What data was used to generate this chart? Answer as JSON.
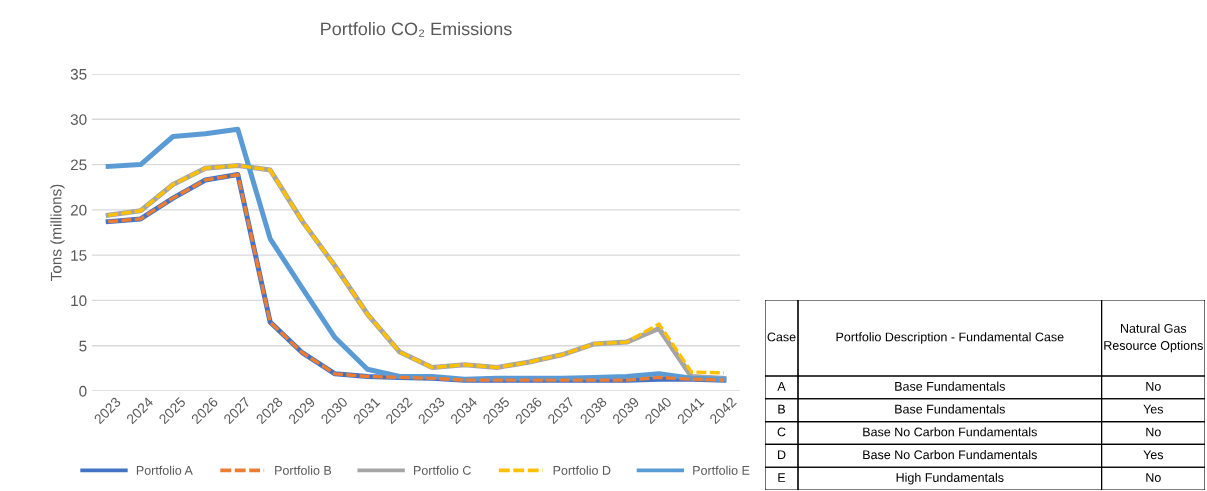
{
  "chart_data": [
    {
      "type": "line",
      "title": "Portfolio CO₂ Emissions",
      "ylabel": "Tons (millions)",
      "categories": [
        "2023",
        "2024",
        "2025",
        "2026",
        "2027",
        "2028",
        "2029",
        "2030",
        "2031",
        "2032",
        "2033",
        "2034",
        "2035",
        "2036",
        "2037",
        "2038",
        "2039",
        "2040",
        "2041",
        "2042"
      ],
      "series": [
        {
          "name": "Portfolio A",
          "color": "#4472c4",
          "line_style": "solid",
          "values": [
            18.7,
            19.0,
            21.3,
            23.3,
            23.9,
            7.6,
            4.2,
            1.9,
            1.6,
            1.5,
            1.4,
            1.2,
            1.2,
            1.2,
            1.2,
            1.2,
            1.2,
            1.3,
            1.3,
            1.2
          ]
        },
        {
          "name": "Portfolio B",
          "color": "#ed7d31",
          "line_style": "dashed",
          "values": [
            18.7,
            19.0,
            21.3,
            23.3,
            23.9,
            7.6,
            4.2,
            1.9,
            1.6,
            1.5,
            1.4,
            1.2,
            1.2,
            1.2,
            1.2,
            1.2,
            1.2,
            1.5,
            1.3,
            1.2
          ]
        },
        {
          "name": "Portfolio C",
          "color": "#a5a5a5",
          "line_style": "solid",
          "values": [
            19.4,
            19.9,
            22.8,
            24.6,
            24.9,
            24.4,
            18.7,
            13.8,
            8.5,
            4.3,
            2.6,
            2.9,
            2.6,
            3.2,
            4.0,
            5.2,
            5.4,
            6.9,
            1.6,
            1.4
          ]
        },
        {
          "name": "Portfolio D",
          "color": "#ffc000",
          "line_style": "dashed",
          "values": [
            19.4,
            19.9,
            22.8,
            24.6,
            24.9,
            24.4,
            18.7,
            13.8,
            8.5,
            4.3,
            2.6,
            2.9,
            2.6,
            3.2,
            4.0,
            5.2,
            5.4,
            7.4,
            2.1,
            2.0
          ]
        },
        {
          "name": "Portfolio E",
          "color": "#5b9bd5",
          "line_style": "solid",
          "values": [
            24.8,
            25.0,
            28.1,
            28.4,
            28.9,
            16.8,
            11.3,
            5.9,
            2.4,
            1.6,
            1.6,
            1.3,
            1.4,
            1.4,
            1.4,
            1.5,
            1.6,
            1.9,
            1.4,
            1.3
          ]
        }
      ],
      "ylim": [
        0,
        35
      ],
      "yticks": [
        0,
        5,
        10,
        15,
        20,
        25,
        30,
        35
      ],
      "grid": "y",
      "legend": "bottom",
      "marker": "none"
    },
    {
      "type": "other",
      "annotations": [
        "Case",
        "Portfolio Description - Fundamental Case",
        "Natural Gas Resource Options",
        "A",
        "Base Fundamentals",
        "No",
        "B",
        "Base Fundamentals",
        "Yes",
        "C",
        "Base No Carbon Fundamentals",
        "No",
        "D",
        "Base No Carbon Fundamentals",
        "Yes",
        "E",
        "High Fundamentals",
        "No"
      ]
    }
  ]
}
